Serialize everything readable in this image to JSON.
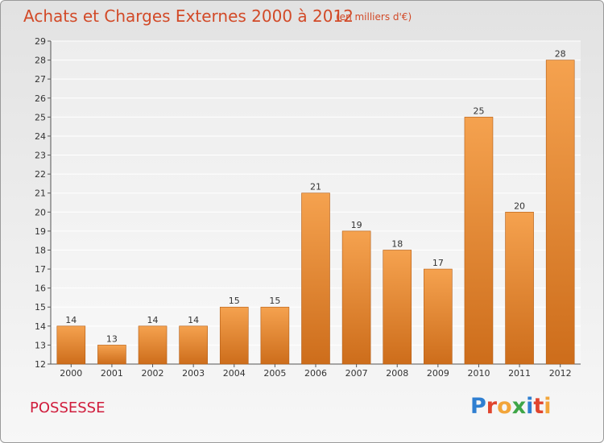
{
  "header": {
    "title": "Achats et Charges Externes 2000 à 2012",
    "unit_note": "(en milliers d'€)"
  },
  "footer": {
    "commune": "POSSESSE",
    "brand_letters": [
      "P",
      "r",
      "o",
      "x",
      "i",
      "t",
      "i"
    ]
  },
  "colors": {
    "title": "#d24a28",
    "commune": "#d01c3c",
    "bar_top": "#f5a24f",
    "bar_bottom": "#cd6d1b",
    "brand": [
      "#2f7fd1",
      "#e0452e",
      "#f2a53a",
      "#3fa648",
      "#2f7fd1",
      "#e0452e",
      "#f2a53a"
    ]
  },
  "chart_data": {
    "type": "bar",
    "categories": [
      "2000",
      "2001",
      "2002",
      "2003",
      "2004",
      "2005",
      "2006",
      "2007",
      "2008",
      "2009",
      "2010",
      "2011",
      "2012"
    ],
    "values": [
      14,
      13,
      14,
      14,
      15,
      15,
      21,
      19,
      18,
      17,
      25,
      20,
      28
    ],
    "data_labels": [
      "14",
      "13",
      "14",
      "14",
      "15",
      "15",
      "21",
      "19",
      "18",
      "17",
      "25",
      "20",
      "28"
    ],
    "y_ticks": [
      12,
      13,
      14,
      15,
      16,
      17,
      18,
      19,
      20,
      21,
      22,
      23,
      24,
      25,
      26,
      27,
      28,
      29
    ],
    "ylim": [
      12,
      29
    ],
    "grid": true,
    "title": "Achats et Charges Externes 2000 à 2012",
    "xlabel": "",
    "ylabel": ""
  }
}
